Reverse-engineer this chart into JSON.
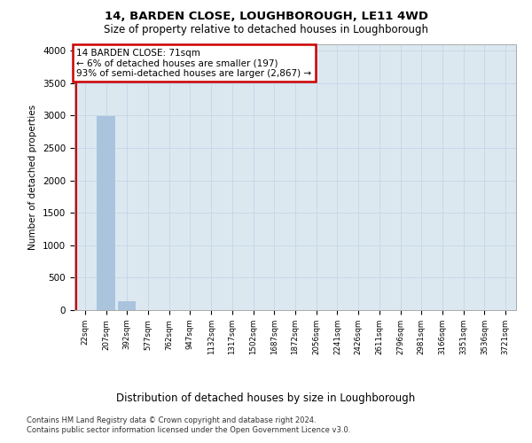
{
  "title1": "14, BARDEN CLOSE, LOUGHBOROUGH, LE11 4WD",
  "title2": "Size of property relative to detached houses in Loughborough",
  "xlabel": "Distribution of detached houses by size in Loughborough",
  "ylabel": "Number of detached properties",
  "categories": [
    "22sqm",
    "207sqm",
    "392sqm",
    "577sqm",
    "762sqm",
    "947sqm",
    "1132sqm",
    "1317sqm",
    "1502sqm",
    "1687sqm",
    "1872sqm",
    "2056sqm",
    "2241sqm",
    "2426sqm",
    "2611sqm",
    "2796sqm",
    "2981sqm",
    "3166sqm",
    "3351sqm",
    "3536sqm",
    "3721sqm"
  ],
  "values": [
    0,
    2990,
    130,
    0,
    0,
    0,
    0,
    0,
    0,
    0,
    0,
    0,
    0,
    0,
    0,
    0,
    0,
    0,
    0,
    0,
    0
  ],
  "bar_color": "#aac4dd",
  "ylim": [
    0,
    4100
  ],
  "yticks": [
    0,
    500,
    1000,
    1500,
    2000,
    2500,
    3000,
    3500,
    4000
  ],
  "annotation_line1": "14 BARDEN CLOSE: 71sqm",
  "annotation_line2": "← 6% of detached houses are smaller (197)",
  "annotation_line3": "93% of semi-detached houses are larger (2,867) →",
  "annotation_box_color": "#cc0000",
  "footer1": "Contains HM Land Registry data © Crown copyright and database right 2024.",
  "footer2": "Contains public sector information licensed under the Open Government Licence v3.0.",
  "grid_color": "#c8d8e8",
  "bg_color": "#dce8f0",
  "vline_x": 0.08,
  "vline_color": "#cc0000"
}
